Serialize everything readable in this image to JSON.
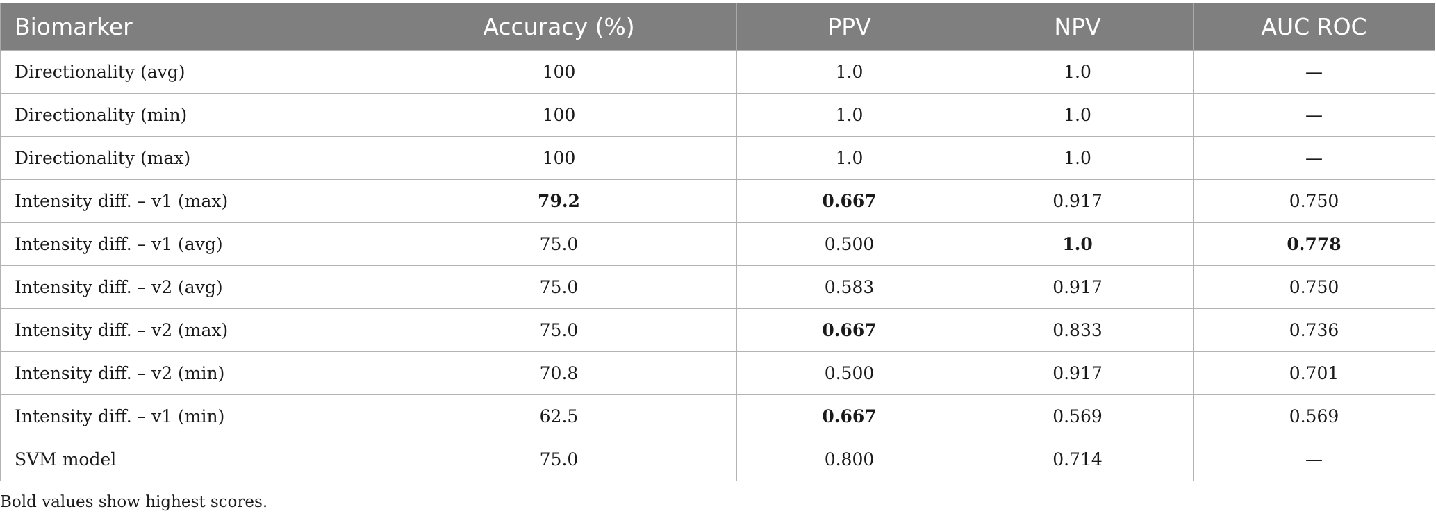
{
  "table": {
    "headers": [
      "Biomarker",
      "Accuracy (%)",
      "PPV",
      "NPV",
      "AUC ROC"
    ],
    "rows": [
      {
        "cells": [
          "Directionality (avg)",
          "100",
          "1.0",
          "1.0",
          "—"
        ],
        "bold": [
          false,
          false,
          false,
          false,
          false
        ]
      },
      {
        "cells": [
          "Directionality (min)",
          "100",
          "1.0",
          "1.0",
          "—"
        ],
        "bold": [
          false,
          false,
          false,
          false,
          false
        ]
      },
      {
        "cells": [
          "Directionality (max)",
          "100",
          "1.0",
          "1.0",
          "—"
        ],
        "bold": [
          false,
          false,
          false,
          false,
          false
        ]
      },
      {
        "cells": [
          "Intensity diff. – v1 (max)",
          "79.2",
          "0.667",
          "0.917",
          "0.750"
        ],
        "bold": [
          false,
          true,
          true,
          false,
          false
        ]
      },
      {
        "cells": [
          "Intensity diff. – v1 (avg)",
          "75.0",
          "0.500",
          "1.0",
          "0.778"
        ],
        "bold": [
          false,
          false,
          false,
          true,
          true
        ]
      },
      {
        "cells": [
          "Intensity diff. – v2 (avg)",
          "75.0",
          "0.583",
          "0.917",
          "0.750"
        ],
        "bold": [
          false,
          false,
          false,
          false,
          false
        ]
      },
      {
        "cells": [
          "Intensity diff. – v2 (max)",
          "75.0",
          "0.667",
          "0.833",
          "0.736"
        ],
        "bold": [
          false,
          false,
          true,
          false,
          false
        ]
      },
      {
        "cells": [
          "Intensity diff. – v2 (min)",
          "70.8",
          "0.500",
          "0.917",
          "0.701"
        ],
        "bold": [
          false,
          false,
          false,
          false,
          false
        ]
      },
      {
        "cells": [
          "Intensity diff. – v1 (min)",
          "62.5",
          "0.667",
          "0.569",
          "0.569"
        ],
        "bold": [
          false,
          false,
          true,
          false,
          false
        ]
      },
      {
        "cells": [
          "SVM model",
          "75.0",
          "0.800",
          "0.714",
          "—"
        ],
        "bold": [
          false,
          false,
          false,
          false,
          false
        ]
      }
    ]
  },
  "footnote": "Bold values show highest scores.",
  "colors": {
    "header_bg": "#7f7f7f",
    "header_text": "#ffffff",
    "border": "#b3b3b3"
  }
}
